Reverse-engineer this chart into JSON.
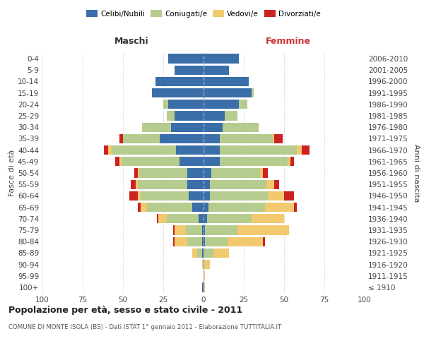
{
  "age_groups": [
    "100+",
    "95-99",
    "90-94",
    "85-89",
    "80-84",
    "75-79",
    "70-74",
    "65-69",
    "60-64",
    "55-59",
    "50-54",
    "45-49",
    "40-44",
    "35-39",
    "30-34",
    "25-29",
    "20-24",
    "15-19",
    "10-14",
    "5-9",
    "0-4"
  ],
  "birth_years": [
    "≤ 1910",
    "1911-1915",
    "1916-1920",
    "1921-1925",
    "1926-1930",
    "1931-1935",
    "1936-1940",
    "1941-1945",
    "1946-1950",
    "1951-1955",
    "1956-1960",
    "1961-1965",
    "1966-1970",
    "1971-1975",
    "1976-1980",
    "1981-1985",
    "1986-1990",
    "1991-1995",
    "1996-2000",
    "2001-2005",
    "2006-2010"
  ],
  "colors": {
    "celibi": "#3a6ea8",
    "coniugati": "#b5cc8e",
    "vedovi": "#f2c96e",
    "divorziati": "#cc2222"
  },
  "maschi": {
    "celibi": [
      1,
      0,
      0,
      1,
      1,
      1,
      3,
      7,
      9,
      10,
      10,
      15,
      17,
      27,
      20,
      18,
      22,
      32,
      30,
      18,
      22
    ],
    "coniugati": [
      0,
      0,
      0,
      3,
      9,
      10,
      20,
      28,
      30,
      31,
      30,
      36,
      40,
      23,
      18,
      5,
      3,
      0,
      0,
      0,
      0
    ],
    "vedovi": [
      0,
      0,
      1,
      3,
      8,
      7,
      5,
      4,
      2,
      1,
      1,
      1,
      2,
      0,
      0,
      0,
      0,
      0,
      0,
      0,
      0
    ],
    "divorziati": [
      0,
      0,
      0,
      0,
      1,
      1,
      1,
      2,
      5,
      3,
      2,
      3,
      3,
      2,
      0,
      0,
      0,
      0,
      0,
      0,
      0
    ]
  },
  "femmine": {
    "nubili": [
      0,
      0,
      0,
      0,
      1,
      1,
      2,
      3,
      4,
      4,
      5,
      10,
      10,
      10,
      12,
      13,
      22,
      30,
      28,
      16,
      22
    ],
    "coniugate": [
      0,
      0,
      1,
      6,
      14,
      20,
      28,
      35,
      36,
      35,
      30,
      42,
      48,
      33,
      22,
      8,
      5,
      1,
      0,
      0,
      0
    ],
    "vedove": [
      1,
      1,
      3,
      10,
      22,
      32,
      20,
      18,
      10,
      5,
      2,
      2,
      3,
      1,
      0,
      0,
      0,
      0,
      0,
      0,
      0
    ],
    "divorziate": [
      0,
      0,
      0,
      0,
      1,
      0,
      0,
      2,
      6,
      3,
      3,
      2,
      5,
      5,
      0,
      0,
      0,
      0,
      0,
      0,
      0
    ]
  },
  "xlim": 100,
  "title": "Popolazione per età, sesso e stato civile - 2011",
  "subtitle": "COMUNE DI MONTE ISOLA (BS) - Dati ISTAT 1° gennaio 2011 - Elaborazione TUTTITALIA.IT",
  "ylabel_left": "Fasce di età",
  "ylabel_right": "Anni di nascita",
  "xlabel_left": "Maschi",
  "xlabel_right": "Femmine",
  "legend_labels": [
    "Celibi/Nubili",
    "Coniugati/e",
    "Vedovi/e",
    "Divorziati/e"
  ],
  "background_color": "#ffffff",
  "grid_color": "#cccccc"
}
